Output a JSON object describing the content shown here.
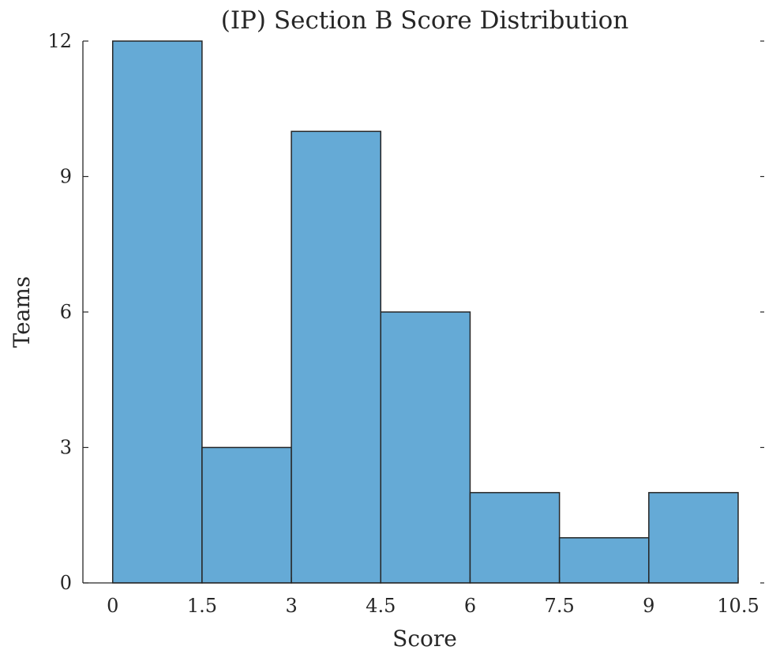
{
  "chart_data": {
    "type": "bar",
    "title": "(IP) Section B Score Distribution",
    "xlabel": "Score",
    "ylabel": "Teams",
    "bin_edges": [
      0,
      1.5,
      3,
      4.5,
      6,
      7.5,
      9,
      10.5
    ],
    "values": [
      12,
      3,
      10,
      6,
      2,
      1,
      2
    ],
    "xlim": [
      -0.5,
      10.5
    ],
    "ylim": [
      0,
      12
    ],
    "xticks": [
      "0",
      "1.5",
      "3",
      "4.5",
      "6",
      "7.5",
      "9",
      "10.5"
    ],
    "yticks": [
      "0",
      "3",
      "6",
      "9",
      "12"
    ],
    "grid": false,
    "legend": "none",
    "colors": {
      "bar_fill": "#65aad6",
      "bar_edge": "#262626",
      "axis": "#262626"
    }
  }
}
